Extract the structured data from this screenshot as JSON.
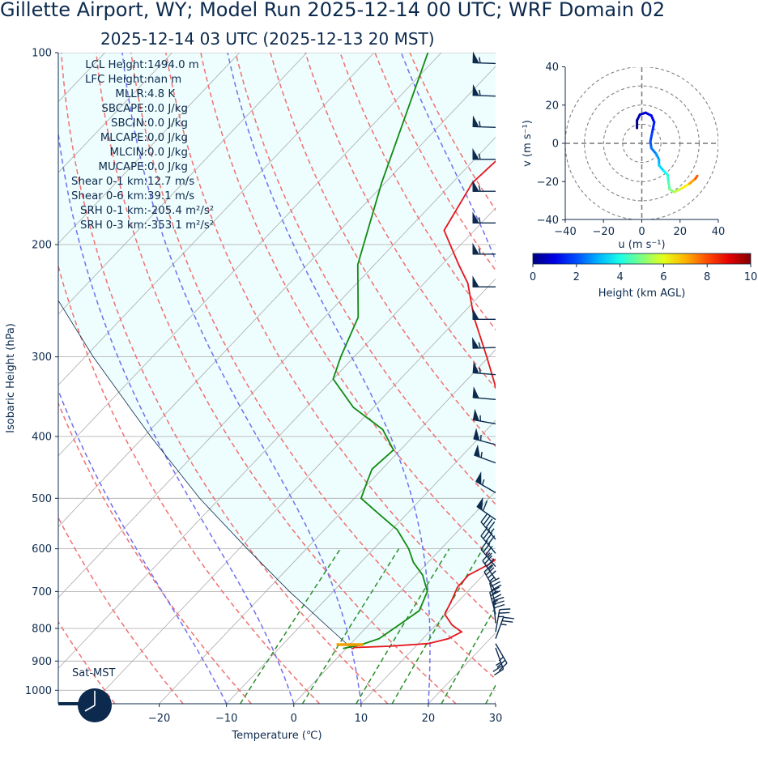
{
  "figure": {
    "title_line1": "Gillette  Airport, WY; Model Run 2025-12-14 00 UTC; WRF Domain 02",
    "title_line2": "2025-12-14 03 UTC  (2025-12-13 20 MST)",
    "clock_label": "Sat-MST"
  },
  "colors": {
    "text": "#0c2a4d",
    "temperature": "#e8141c",
    "dewpoint": "#118a11",
    "parcel_fill": "#eefdfd",
    "dry_adiabat": "#f07070",
    "moist_adiabat": "#7070ee",
    "mixing_ratio": "#2a8f2a",
    "isotherm": "#aaaaaa",
    "isobar": "#aaaaaa",
    "barb": "#0c2a4d"
  },
  "parameters": [
    {
      "label": "LCL Height:",
      "value": "1494.0 m"
    },
    {
      "label": "LFC Height:",
      "value": "nan m"
    },
    {
      "label": "MLLR:",
      "value": "4.8 K"
    },
    {
      "label": "SBCAPE:",
      "value": "0.0 J/kg"
    },
    {
      "label": "SBCIN:",
      "value": "0.0 J/kg"
    },
    {
      "label": "MLCAPE:",
      "value": "0.0 J/kg"
    },
    {
      "label": "MLCIN:",
      "value": "0.0 J/kg"
    },
    {
      "label": "MUCAPE:",
      "value": "0.0 J/kg"
    },
    {
      "label": "Shear 0-1 km:",
      "value": "12.7 m/s"
    },
    {
      "label": "Shear 0-6 km:",
      "value": "39.1 m/s"
    },
    {
      "label": "SRH 0-1 km:",
      "value": "-205.4 m²/s²"
    },
    {
      "label": "SRH 0-3 km:",
      "value": "-353.1 m²/s²"
    }
  ],
  "chart_data": [
    {
      "type": "line",
      "name": "skew-t",
      "xlabel": "Temperature (℃)",
      "ylabel": "Isobaric Height (hPa)",
      "log_y": true,
      "xlim": [
        -35,
        30
      ],
      "ylim": [
        1050,
        100
      ],
      "x_ticks": [
        "−20",
        "−10",
        "0",
        "10",
        "20",
        "30"
      ],
      "x_tick_values": [
        -20,
        -10,
        0,
        10,
        20,
        30
      ],
      "y_ticks": [
        "1000",
        "900",
        "800",
        "700",
        "600",
        "500",
        "400",
        "300",
        "200",
        "100"
      ],
      "y_tick_values": [
        1000,
        900,
        800,
        700,
        600,
        500,
        400,
        300,
        200,
        100
      ],
      "temperature": [
        {
          "p": 862,
          "t": 1.0
        },
        {
          "p": 857,
          "t": 1.0
        },
        {
          "p": 853,
          "t": 6.0
        },
        {
          "p": 845,
          "t": 11.5
        },
        {
          "p": 830,
          "t": 13.8
        },
        {
          "p": 810,
          "t": 14.8
        },
        {
          "p": 790,
          "t": 12.4
        },
        {
          "p": 760,
          "t": 9.8
        },
        {
          "p": 720,
          "t": 8.8
        },
        {
          "p": 690,
          "t": 7.9
        },
        {
          "p": 660,
          "t": 7.8
        },
        {
          "p": 635,
          "t": 9.3
        },
        {
          "p": 610,
          "t": 10.0
        },
        {
          "p": 590,
          "t": 9.6
        },
        {
          "p": 540,
          "t": 6.3
        },
        {
          "p": 500,
          "t": 3.5
        },
        {
          "p": 450,
          "t": -0.5
        },
        {
          "p": 400,
          "t": -6.0
        },
        {
          "p": 350,
          "t": -12.4
        },
        {
          "p": 300,
          "t": -20.3
        },
        {
          "p": 260,
          "t": -27.8
        },
        {
          "p": 230,
          "t": -33.5
        },
        {
          "p": 215,
          "t": -37.5
        },
        {
          "p": 190,
          "t": -44.5
        },
        {
          "p": 160,
          "t": -47.0
        },
        {
          "p": 140,
          "t": -46.3
        },
        {
          "p": 125,
          "t": -47.0
        },
        {
          "p": 100,
          "t": -51.0
        }
      ],
      "dewpoint": [
        {
          "p": 860,
          "t": -0.5
        },
        {
          "p": 850,
          "t": 1.5
        },
        {
          "p": 830,
          "t": 3.5
        },
        {
          "p": 790,
          "t": 4.5
        },
        {
          "p": 750,
          "t": 5.5
        },
        {
          "p": 700,
          "t": 4.0
        },
        {
          "p": 660,
          "t": 1.0
        },
        {
          "p": 630,
          "t": -2.2
        },
        {
          "p": 600,
          "t": -4.8
        },
        {
          "p": 560,
          "t": -9.2
        },
        {
          "p": 530,
          "t": -14.0
        },
        {
          "p": 500,
          "t": -19.0
        },
        {
          "p": 470,
          "t": -20.5
        },
        {
          "p": 450,
          "t": -21.5
        },
        {
          "p": 420,
          "t": -21.0
        },
        {
          "p": 390,
          "t": -25.5
        },
        {
          "p": 360,
          "t": -33.0
        },
        {
          "p": 325,
          "t": -40.0
        },
        {
          "p": 300,
          "t": -42.0
        },
        {
          "p": 260,
          "t": -45.0
        },
        {
          "p": 215,
          "t": -52.5
        },
        {
          "p": 160,
          "t": -60.5
        },
        {
          "p": 100,
          "t": -72.0
        }
      ],
      "parcel": [
        {
          "p": 862,
          "t": 1.0
        },
        {
          "p": 800,
          "t": -5.3
        },
        {
          "p": 700,
          "t": -16.5
        },
        {
          "p": 600,
          "t": -28.8
        },
        {
          "p": 500,
          "t": -43.0
        },
        {
          "p": 400,
          "t": -59.0
        },
        {
          "p": 300,
          "t": -78.8
        },
        {
          "p": 200,
          "t": -105.0
        },
        {
          "p": 100,
          "t": -149.0
        }
      ],
      "annotation": {
        "p": 848,
        "t_start": -2.0,
        "t_end": 2.0
      },
      "wind_barbs": [
        {
          "p": 104,
          "spd": 57,
          "dir": 272
        },
        {
          "p": 117,
          "spd": 55,
          "dir": 272
        },
        {
          "p": 131,
          "spd": 55,
          "dir": 272
        },
        {
          "p": 147,
          "spd": 55,
          "dir": 270
        },
        {
          "p": 165,
          "spd": 55,
          "dir": 270
        },
        {
          "p": 185,
          "spd": 55,
          "dir": 270
        },
        {
          "p": 207,
          "spd": 55,
          "dir": 270
        },
        {
          "p": 233,
          "spd": 50,
          "dir": 270
        },
        {
          "p": 262,
          "spd": 52,
          "dir": 270
        },
        {
          "p": 290,
          "spd": 53,
          "dir": 268
        },
        {
          "p": 320,
          "spd": 55,
          "dir": 275
        },
        {
          "p": 350,
          "spd": 52,
          "dir": 275
        },
        {
          "p": 382,
          "spd": 53,
          "dir": 280
        },
        {
          "p": 412,
          "spd": 55,
          "dir": 285
        },
        {
          "p": 440,
          "spd": 57,
          "dir": 290
        },
        {
          "p": 490,
          "spd": 57,
          "dir": 300
        },
        {
          "p": 540,
          "spd": 58,
          "dir": 305
        },
        {
          "p": 580,
          "spd": 45,
          "dir": 320
        },
        {
          "p": 610,
          "spd": 40,
          "dir": 320
        },
        {
          "p": 640,
          "spd": 35,
          "dir": 320
        },
        {
          "p": 670,
          "spd": 35,
          "dir": 325
        },
        {
          "p": 700,
          "spd": 35,
          "dir": 330
        },
        {
          "p": 735,
          "spd": 35,
          "dir": 345
        },
        {
          "p": 760,
          "spd": 35,
          "dir": 345
        },
        {
          "p": 785,
          "spd": 30,
          "dir": 355
        },
        {
          "p": 810,
          "spd": 25,
          "dir": 10
        },
        {
          "p": 830,
          "spd": 25,
          "dir": 20
        },
        {
          "p": 845,
          "spd": 25,
          "dir": 150
        },
        {
          "p": 858,
          "spd": 25,
          "dir": 160
        }
      ]
    },
    {
      "type": "line",
      "name": "hodograph",
      "xlabel": "u (m s⁻¹)",
      "ylabel": "v (m s⁻¹)",
      "xlim": [
        -40,
        40
      ],
      "ylim": [
        -40,
        40
      ],
      "x_ticks": [
        "−40",
        "−20",
        "0",
        "20",
        "40"
      ],
      "y_ticks": [
        "40",
        "20",
        "0",
        "−20",
        "−40"
      ],
      "rings": [
        10,
        20,
        30,
        40
      ],
      "points": [
        {
          "u": -2.5,
          "v": 8.0,
          "h": 0.0
        },
        {
          "u": -2.5,
          "v": 12.0,
          "h": 0.2
        },
        {
          "u": -1.0,
          "v": 15.0,
          "h": 0.5
        },
        {
          "u": 2.0,
          "v": 16.0,
          "h": 0.8
        },
        {
          "u": 5.0,
          "v": 14.5,
          "h": 1.1
        },
        {
          "u": 6.5,
          "v": 11.0,
          "h": 1.4
        },
        {
          "u": 5.5,
          "v": 6.0,
          "h": 1.7
        },
        {
          "u": 4.5,
          "v": 1.0,
          "h": 2.0
        },
        {
          "u": 5.0,
          "v": -2.5,
          "h": 2.3
        },
        {
          "u": 7.5,
          "v": -5.5,
          "h": 2.6
        },
        {
          "u": 9.0,
          "v": -8.5,
          "h": 2.9
        },
        {
          "u": 9.0,
          "v": -11.5,
          "h": 3.2
        },
        {
          "u": 11.5,
          "v": -14.5,
          "h": 3.6
        },
        {
          "u": 13.5,
          "v": -16.5,
          "h": 4.0
        },
        {
          "u": 14.0,
          "v": -20.5,
          "h": 4.4
        },
        {
          "u": 14.5,
          "v": -24.0,
          "h": 4.8
        },
        {
          "u": 17.0,
          "v": -25.5,
          "h": 5.3
        },
        {
          "u": 21.0,
          "v": -23.5,
          "h": 6.0
        },
        {
          "u": 25.0,
          "v": -21.0,
          "h": 6.8
        },
        {
          "u": 28.0,
          "v": -18.5,
          "h": 7.6
        },
        {
          "u": 29.0,
          "v": -17.0,
          "h": 8.2
        }
      ],
      "colorbar": {
        "label": "Height (km AGL)",
        "ticks": [
          "0",
          "2",
          "4",
          "6",
          "8",
          "10"
        ],
        "min": 0,
        "max": 10
      }
    }
  ]
}
